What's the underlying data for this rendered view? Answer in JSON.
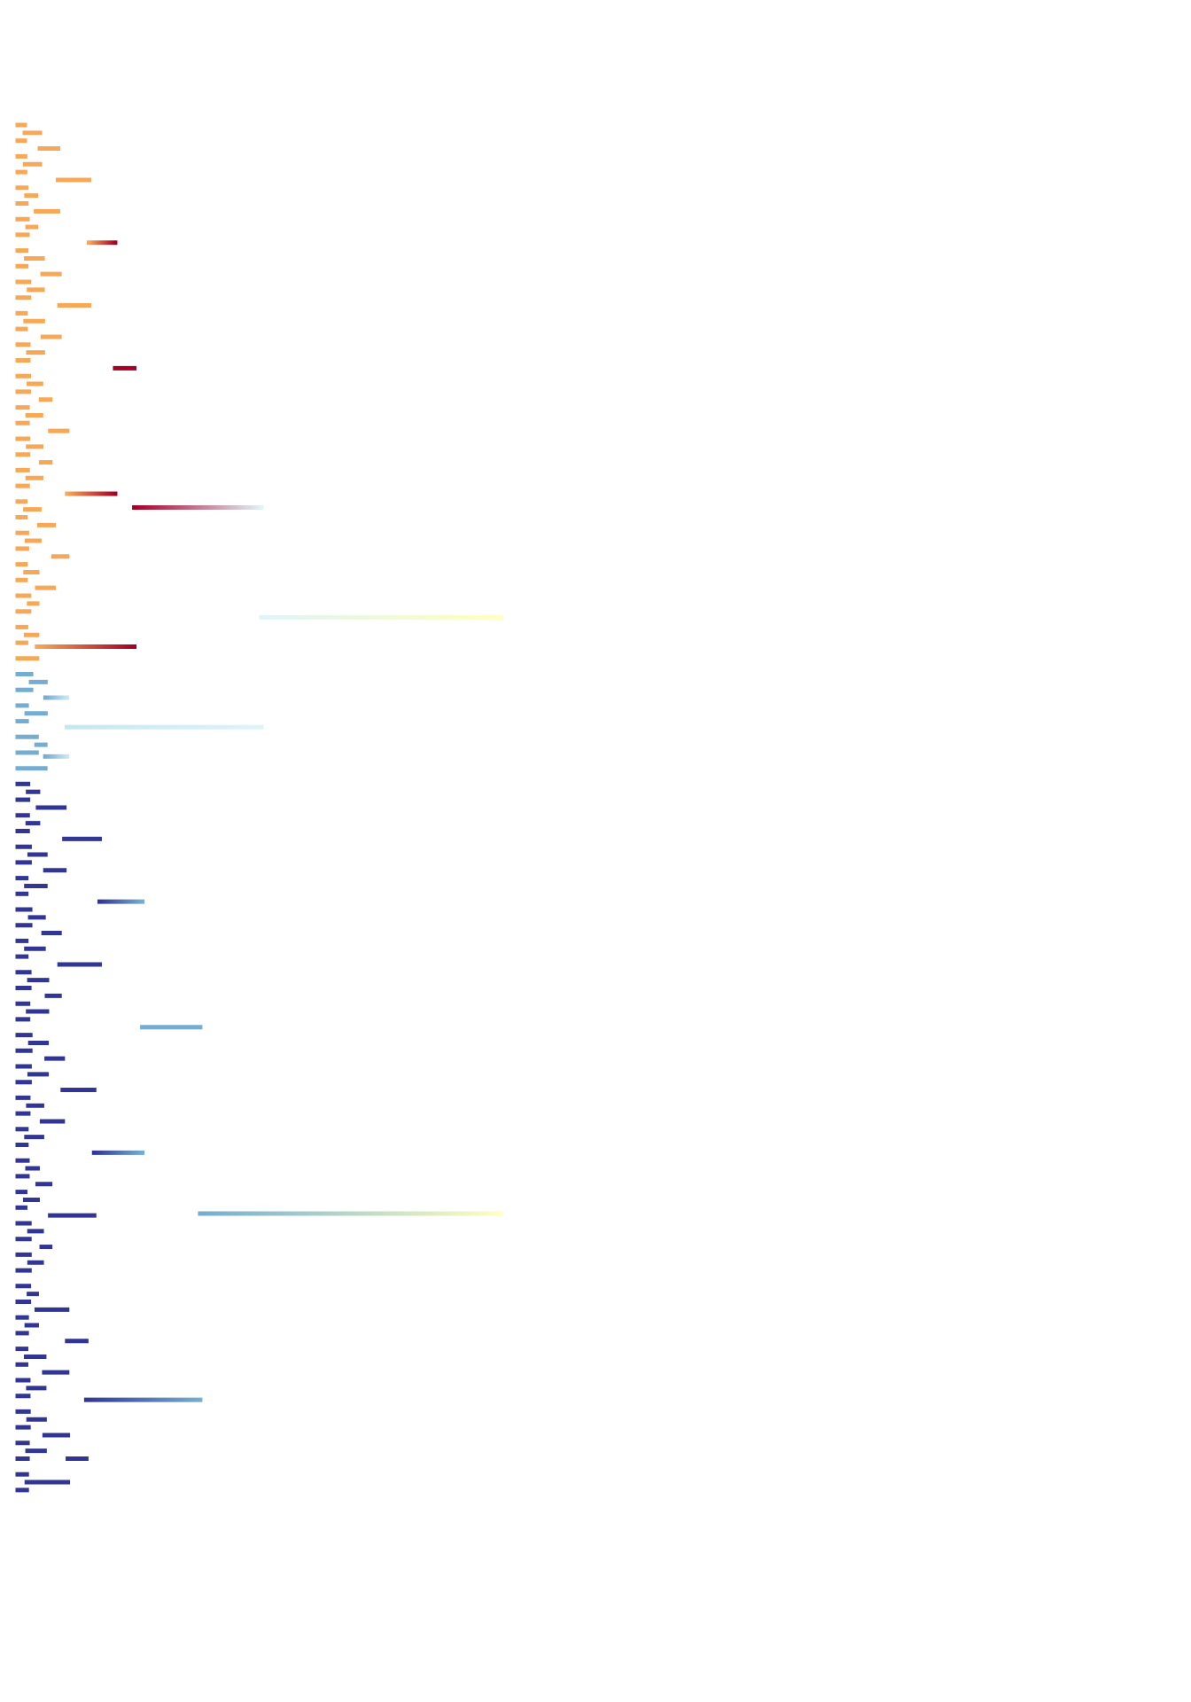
{
  "diagram": {
    "type": "dendrogram",
    "orientation": "left-to-right",
    "leaf_count": 88,
    "colormap": "RdYlBu",
    "groups": [
      {
        "name": "orange-red",
        "first_leaf": 0,
        "last_leaf": 34,
        "leaf_color": "#f6a857",
        "root_color": "#a50026"
      },
      {
        "name": "light-blue",
        "first_leaf": 35,
        "last_leaf": 41,
        "leaf_color": "#74add1",
        "root_color": "#c7e6f1"
      },
      {
        "name": "dark-blue",
        "first_leaf": 42,
        "last_leaf": 87,
        "leaf_color": "#313695",
        "root_color": "#74add1"
      }
    ],
    "root_color": "#ffffbf"
  }
}
